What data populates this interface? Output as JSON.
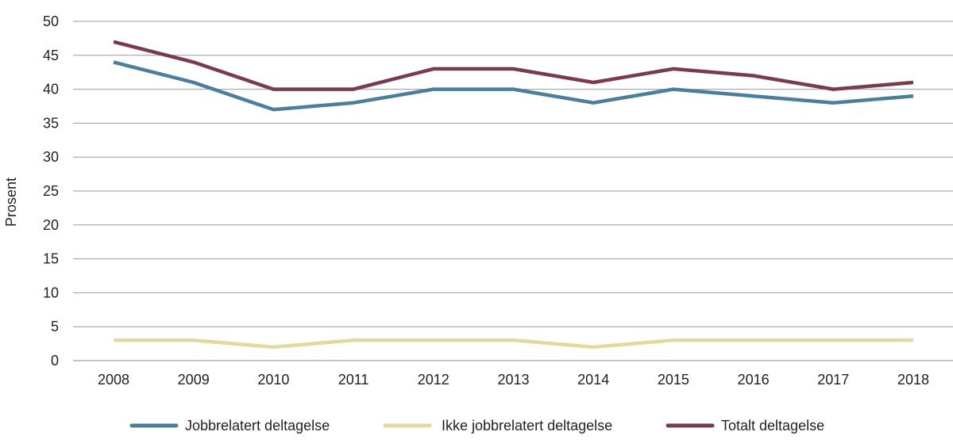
{
  "chart_data": {
    "type": "line",
    "title": "",
    "xlabel": "",
    "ylabel": "Prosent",
    "x": [
      "2008",
      "2009",
      "2010",
      "2011",
      "2012",
      "2013",
      "2014",
      "2015",
      "2016",
      "2017",
      "2018"
    ],
    "ylim": [
      0,
      50
    ],
    "yticks": [
      0,
      5,
      10,
      15,
      20,
      25,
      30,
      35,
      40,
      45,
      50
    ],
    "grid": "horizontal",
    "legend_position": "bottom",
    "series": [
      {
        "name": "Jobbrelatert deltagelse",
        "color": "#4a7f9c",
        "values": [
          44,
          41,
          37,
          38,
          40,
          40,
          38,
          40,
          39,
          38,
          39
        ]
      },
      {
        "name": "Ikke jobbrelatert deltagelse",
        "color": "#e3d99a",
        "values": [
          3,
          3,
          2,
          3,
          3,
          3,
          2,
          3,
          3,
          3,
          3
        ]
      },
      {
        "name": "Totalt deltagelse",
        "color": "#7a3b4a",
        "values": [
          47,
          44,
          40,
          40,
          43,
          43,
          41,
          43,
          42,
          40,
          41
        ]
      }
    ]
  }
}
